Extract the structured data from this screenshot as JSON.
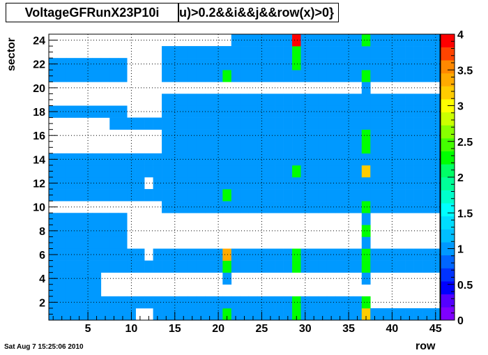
{
  "header": {
    "title": "VoltageGFRunX23P10i",
    "selection": "u)>0.2&&i&&j&&row(x)>0}"
  },
  "footer": {
    "timestamp": "Sat Aug  7 15:25:06 2010"
  },
  "chart_data": {
    "type": "heatmap",
    "xlabel": "row",
    "ylabel": "sector",
    "xlim": [
      0.5,
      45.5
    ],
    "ylim": [
      0.5,
      24.5
    ],
    "zlim": [
      0,
      4
    ],
    "x_ticks": [
      5,
      10,
      15,
      20,
      25,
      30,
      35,
      40,
      45
    ],
    "y_ticks": [
      2,
      4,
      6,
      8,
      10,
      12,
      14,
      16,
      18,
      20,
      22,
      24
    ],
    "z_ticks": [
      0,
      0.5,
      1,
      1.5,
      2,
      2.5,
      3,
      3.5,
      4
    ],
    "grid": true,
    "colorbar_position": "right",
    "default_value": 1,
    "empty_ranges": [
      {
        "sector": 24,
        "rows": [
          [
            1,
            21
          ]
        ]
      },
      {
        "sector": 23,
        "rows": [
          [
            1,
            13
          ]
        ]
      },
      {
        "sector": 22,
        "rows": [
          [
            10,
            13
          ]
        ]
      },
      {
        "sector": 21,
        "rows": [
          [
            10,
            13
          ]
        ]
      },
      {
        "sector": 20,
        "rows": [
          [
            1,
            36
          ],
          [
            38,
            45
          ]
        ]
      },
      {
        "sector": 19,
        "rows": [
          [
            1,
            13
          ]
        ]
      },
      {
        "sector": 18,
        "rows": [
          [
            10,
            13
          ]
        ]
      },
      {
        "sector": 17,
        "rows": [
          [
            1,
            7
          ]
        ]
      },
      {
        "sector": 16,
        "rows": [
          [
            1,
            13
          ]
        ]
      },
      {
        "sector": 15,
        "rows": [
          [
            1,
            13
          ]
        ]
      },
      {
        "sector": 12,
        "rows": [
          [
            12,
            12
          ]
        ]
      },
      {
        "sector": 10,
        "rows": [
          [
            1,
            13
          ]
        ]
      },
      {
        "sector": 9,
        "rows": [
          [
            10,
            36
          ],
          [
            38,
            45
          ]
        ]
      },
      {
        "sector": 8,
        "rows": [
          [
            10,
            36
          ],
          [
            38,
            45
          ]
        ]
      },
      {
        "sector": 7,
        "rows": [
          [
            10,
            36
          ],
          [
            38,
            45
          ]
        ]
      },
      {
        "sector": 6,
        "rows": [
          [
            12,
            12
          ]
        ]
      },
      {
        "sector": 4,
        "rows": [
          [
            7,
            20
          ],
          [
            22,
            36
          ],
          [
            38,
            45
          ]
        ]
      },
      {
        "sector": 3,
        "rows": [
          [
            7,
            45
          ]
        ]
      },
      {
        "sector": 2,
        "rows": [
          [
            38,
            45
          ]
        ]
      },
      {
        "sector": 1,
        "rows": [
          [
            11,
            12
          ]
        ]
      }
    ],
    "cells": [
      {
        "row": 29,
        "sector": 24,
        "value": 4
      },
      {
        "row": 37,
        "sector": 24,
        "value": 2.2
      },
      {
        "row": 29,
        "sector": 23,
        "value": 2.2
      },
      {
        "row": 29,
        "sector": 22,
        "value": 2.2
      },
      {
        "row": 21,
        "sector": 21,
        "value": 2.2
      },
      {
        "row": 37,
        "sector": 21,
        "value": 2.2
      },
      {
        "row": 37,
        "sector": 16,
        "value": 2.2
      },
      {
        "row": 37,
        "sector": 15,
        "value": 2.2
      },
      {
        "row": 29,
        "sector": 13,
        "value": 2.2
      },
      {
        "row": 37,
        "sector": 13,
        "value": 3.1
      },
      {
        "row": 21,
        "sector": 11,
        "value": 2.2
      },
      {
        "row": 37,
        "sector": 10,
        "value": 2.2
      },
      {
        "row": 37,
        "sector": 8,
        "value": 2.2
      },
      {
        "row": 21,
        "sector": 6,
        "value": 3.3
      },
      {
        "row": 29,
        "sector": 6,
        "value": 2.2
      },
      {
        "row": 37,
        "sector": 6,
        "value": 2.2
      },
      {
        "row": 21,
        "sector": 5,
        "value": 2.2
      },
      {
        "row": 29,
        "sector": 5,
        "value": 2.2
      },
      {
        "row": 37,
        "sector": 5,
        "value": 2.2
      },
      {
        "row": 29,
        "sector": 2,
        "value": 2.2
      },
      {
        "row": 37,
        "sector": 2,
        "value": 2.2
      },
      {
        "row": 21,
        "sector": 1,
        "value": 2.2
      },
      {
        "row": 29,
        "sector": 1,
        "value": 2.2
      },
      {
        "row": 37,
        "sector": 1,
        "value": 3.1
      }
    ],
    "palette": [
      "#7f00ff",
      "#5500ff",
      "#0000ff",
      "#0033ff",
      "#0066ff",
      "#0099ff",
      "#00bfff",
      "#00ddff",
      "#00ffff",
      "#00ffcc",
      "#00ff99",
      "#00ff66",
      "#00ff00",
      "#44ff00",
      "#88ff00",
      "#ccff00",
      "#ffff00",
      "#ffcc00",
      "#ffaa00",
      "#ff8800",
      "#ff4400",
      "#ff0000"
    ]
  }
}
